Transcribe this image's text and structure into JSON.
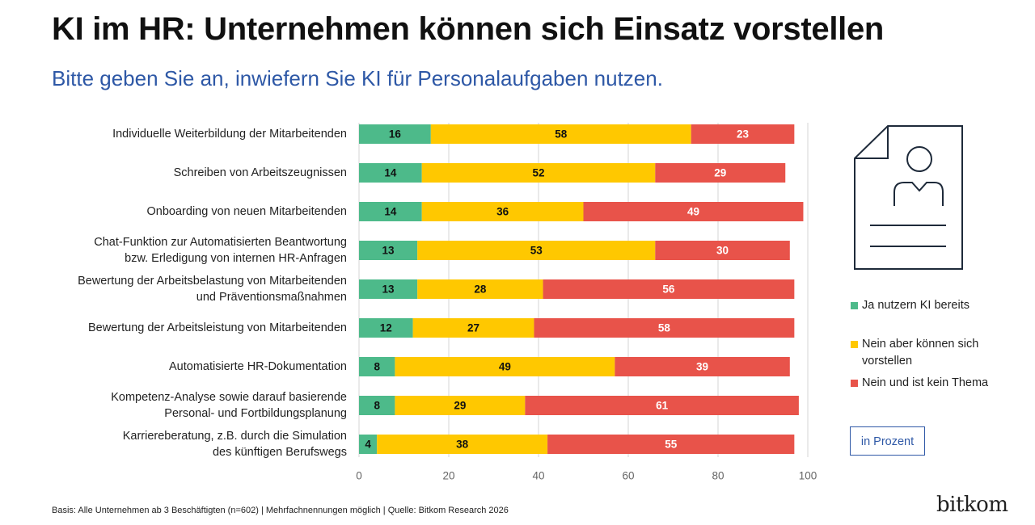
{
  "chart_data": {
    "type": "stacked-barh",
    "title": "KI im HR: Unternehmen können sich Einsatz vorstellen",
    "subtitle": "Bitte geben Sie an, inwiefern Sie KI für Personalaufgaben nutzen.",
    "categories": [
      "Individuelle Weiterbildung der Mitarbeitenden",
      "Schreiben von Arbeitszeugnissen",
      "Onboarding von neuen Mitarbeitenden",
      "Chat-Funktion zur Automatisierten Beantwortung\nbzw. Erledigung von internen HR-Anfragen",
      "Bewertung der Arbeitsbelastung von Mitarbeitenden\nund Präventionsmaßnahmen",
      "Bewertung der Arbeitsleistung von Mitarbeitenden",
      "Automatisierte HR-Dokumentation",
      "Kompetenz-Analyse sowie darauf basierende\nPersonal- und Fortbildungsplanung",
      "Karriereberatung, z.B. durch die Simulation\ndes künftigen Berufswegs"
    ],
    "series": [
      {
        "name": "Ja nutzern KI bereits",
        "color": "#4dba8a",
        "values": [
          16,
          14,
          14,
          13,
          13,
          12,
          8,
          8,
          4
        ]
      },
      {
        "name": "Nein aber können sich vorstellen",
        "color": "#ffc800",
        "values": [
          58,
          52,
          36,
          53,
          28,
          27,
          49,
          29,
          38
        ]
      },
      {
        "name": "Nein und ist kein Thema",
        "color": "#e8534a",
        "values": [
          23,
          29,
          49,
          30,
          56,
          58,
          39,
          61,
          55
        ]
      }
    ],
    "xlim": [
      0,
      100
    ],
    "xticks": [
      0,
      20,
      40,
      60,
      80,
      100
    ],
    "grid": true,
    "unit_note": "in Prozent",
    "source": "Basis: Alle Unternehmen ab 3 Beschäftigten (n=602) | Mehrfachnennungen möglich | Quelle: Bitkom Research 2026",
    "logo": "bitkom"
  }
}
